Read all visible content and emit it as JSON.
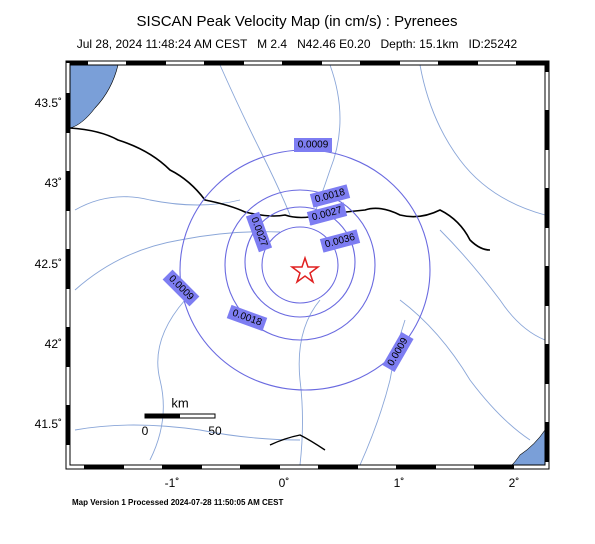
{
  "header": {
    "title": "SISCAN Peak Velocity Map (in cm/s) : Pyrenees",
    "subtitle": "Jul 28, 2024 11:48:24 AM CEST   M 2.4   N42.46 E0.20   Depth: 15.1km   ID:25242"
  },
  "map": {
    "lat_labels": [
      "43.5˚",
      "43˚",
      "42.5˚",
      "42˚",
      "41.5˚"
    ],
    "lon_labels": [
      "-1˚",
      "0˚",
      "1˚",
      "2˚"
    ],
    "contour_labels": [
      "0.0009",
      "0.0018",
      "0.0027",
      "0.0036",
      "0.0027",
      "0.0009",
      "0.0018",
      "0.0009"
    ],
    "scale": {
      "unit": "km",
      "labels": [
        "0",
        "50"
      ]
    }
  },
  "footer": "Map Version 1 Processed 2024-07-28 11:50:05 AM CEST"
}
